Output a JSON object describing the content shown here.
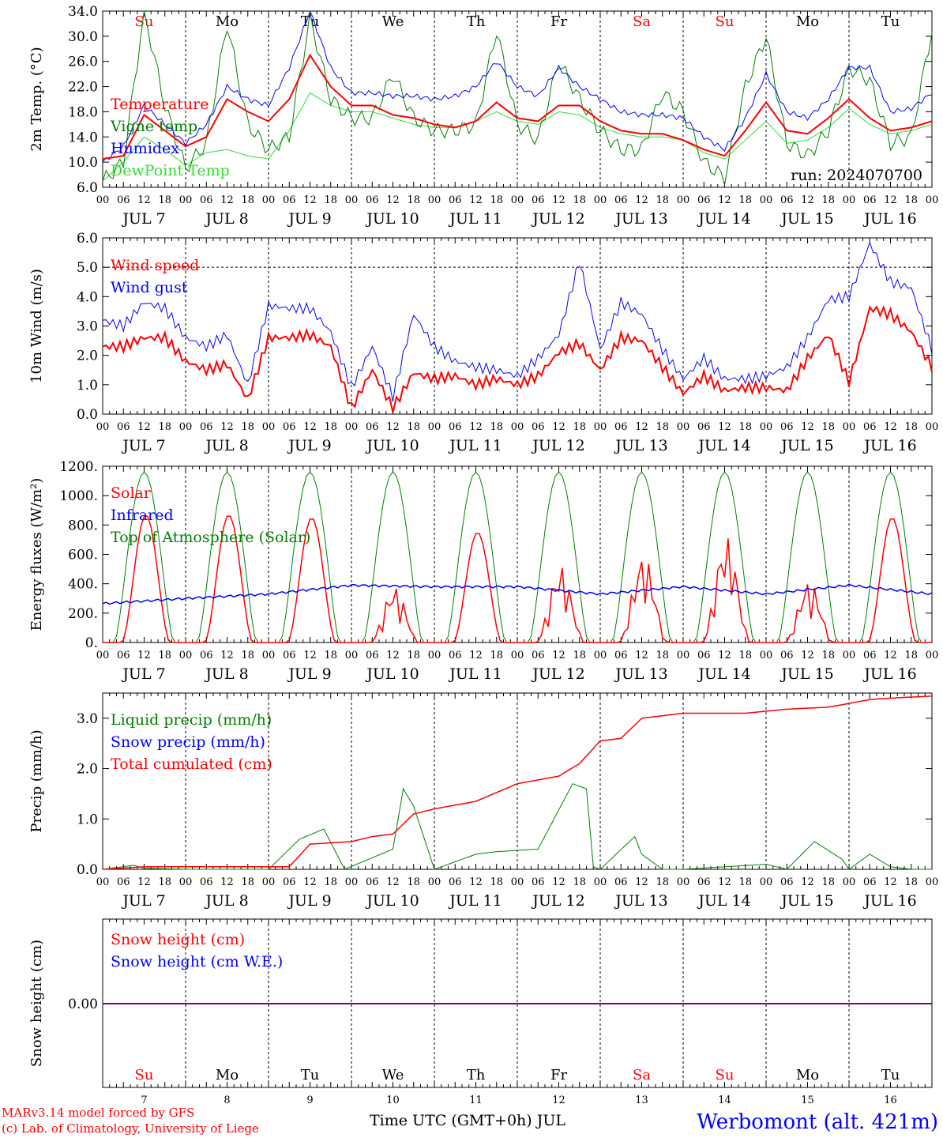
{
  "colors": {
    "red": "#ff0000",
    "green": "#008000",
    "blue": "#0000ff",
    "lightgreen": "#33dd33",
    "purple": "#800080",
    "black": "#000000"
  },
  "hour_ticks": [
    "00",
    "06",
    "12",
    "18"
  ],
  "last_hour_tick": "00",
  "days": [
    {
      "label": "JUL  7",
      "num": "7",
      "dow": "Su",
      "weekend": true
    },
    {
      "label": "JUL  8",
      "num": "8",
      "dow": "Mo",
      "weekend": false
    },
    {
      "label": "JUL  9",
      "num": "9",
      "dow": "Tu",
      "weekend": false
    },
    {
      "label": "JUL 10",
      "num": "10",
      "dow": "We",
      "weekend": false
    },
    {
      "label": "JUL 11",
      "num": "11",
      "dow": "Th",
      "weekend": false
    },
    {
      "label": "JUL 12",
      "num": "12",
      "dow": "Fr",
      "weekend": false
    },
    {
      "label": "JUL 13",
      "num": "13",
      "dow": "Sa",
      "weekend": true
    },
    {
      "label": "JUL 14",
      "num": "14",
      "dow": "Su",
      "weekend": true
    },
    {
      "label": "JUL 15",
      "num": "15",
      "dow": "Mo",
      "weekend": false
    },
    {
      "label": "JUL 16",
      "num": "16",
      "dow": "Tu",
      "weekend": false
    }
  ],
  "footer": {
    "model_line1": "MARv3.14 model forced by GFS",
    "model_line2": "(c) Lab. of Climatology, University of Liege",
    "time_axis": "Time UTC (GMT+0h) JUL",
    "station": "Werbomont (alt. 421m)"
  },
  "chart_data": [
    {
      "type": "line",
      "ylabel": "2m Temp. (°C)",
      "ylim": [
        6,
        34
      ],
      "yticks": [
        "6.0",
        "10.0",
        "14.0",
        "18.0",
        "22.0",
        "26.0",
        "30.0",
        "34.0"
      ],
      "ytick_values": [
        6,
        10,
        14,
        18,
        22,
        26,
        30,
        34
      ],
      "annotation": "run: 2024070700",
      "x_hours": [
        0,
        6,
        12,
        18,
        24,
        30,
        36,
        42,
        48,
        54,
        60,
        66,
        72,
        78,
        84,
        90,
        96,
        102,
        108,
        114,
        120,
        126,
        132,
        138,
        144,
        150,
        156,
        162,
        168,
        174,
        180,
        186,
        192,
        198,
        204,
        210,
        216,
        222,
        228,
        234,
        240
      ],
      "series": [
        {
          "name": "Temperature",
          "color": "red",
          "values": [
            10.5,
            11,
            17.5,
            15,
            12.5,
            14,
            20,
            18,
            16.5,
            20,
            27,
            22,
            19,
            19,
            17.5,
            17,
            16,
            15.5,
            16.5,
            19.5,
            17,
            16.5,
            19,
            19,
            16.5,
            15,
            14.5,
            14.5,
            13.5,
            12,
            11,
            15,
            19.5,
            15,
            14.5,
            17,
            20,
            17,
            15,
            15.5,
            16.5
          ]
        },
        {
          "name": "Vigne temp",
          "color": "green",
          "values": [
            7,
            10,
            34,
            19,
            9,
            13,
            32,
            16,
            12,
            14,
            33,
            20,
            17,
            17,
            24,
            17,
            15,
            15,
            16,
            31,
            16,
            13.5,
            26,
            20,
            15,
            12,
            12,
            21,
            18,
            10,
            7.5,
            22,
            30,
            13,
            11,
            15,
            25,
            23,
            13,
            14,
            31
          ]
        },
        {
          "name": "Humidex",
          "color": "blue",
          "values": [
            10,
            12.5,
            19,
            16,
            13,
            16,
            22,
            20,
            19,
            25,
            34,
            25,
            21,
            21,
            20.5,
            20.5,
            20,
            20.5,
            22,
            26,
            22,
            20.5,
            25,
            22,
            20,
            18,
            17.5,
            17.5,
            17,
            14,
            12,
            17,
            24,
            18,
            17,
            20,
            25,
            25,
            18,
            18.5,
            21
          ]
        },
        {
          "name": "DewPoint Temp",
          "color": "lightgreen",
          "values": [
            7,
            10,
            14,
            12,
            9.5,
            11.5,
            12,
            11,
            10.5,
            15,
            21,
            19,
            18,
            18,
            17,
            16,
            15.5,
            15.5,
            16.5,
            18,
            16.5,
            16,
            18,
            17.5,
            15.5,
            14.5,
            14,
            14,
            13.5,
            11.5,
            10.5,
            13.5,
            16.5,
            13,
            13.5,
            15.5,
            18.5,
            16,
            14.5,
            15,
            16
          ]
        }
      ]
    },
    {
      "type": "line",
      "ylabel": "10m Wind (m/s)",
      "ylim": [
        0,
        6
      ],
      "yticks": [
        "0.0",
        "1.0",
        "2.0",
        "3.0",
        "4.0",
        "5.0",
        "6.0"
      ],
      "ytick_values": [
        0,
        1,
        2,
        3,
        4,
        5,
        6
      ],
      "ref_line": 5,
      "x_hours": [
        0,
        6,
        12,
        18,
        24,
        30,
        36,
        42,
        48,
        54,
        60,
        66,
        72,
        78,
        84,
        90,
        96,
        102,
        108,
        114,
        120,
        126,
        132,
        138,
        144,
        150,
        156,
        162,
        168,
        174,
        180,
        186,
        192,
        198,
        204,
        210,
        216,
        222,
        228,
        234,
        240
      ],
      "series": [
        {
          "name": "Wind speed",
          "color": "red",
          "values": [
            2.3,
            2.3,
            2.6,
            2.6,
            1.8,
            1.5,
            1.7,
            0.5,
            2.6,
            2.6,
            2.7,
            2.3,
            0.2,
            1.5,
            0.2,
            1.4,
            1.2,
            1.3,
            1.0,
            1.2,
            1.0,
            1.3,
            2.1,
            2.4,
            1.5,
            2.6,
            2.5,
            1.6,
            0.7,
            1.3,
            0.8,
            0.9,
            0.9,
            0.8,
            1.9,
            2.7,
            1.1,
            3.6,
            3.4,
            2.8,
            1.6
          ]
        },
        {
          "name": "Wind gust",
          "color": "blue",
          "values": [
            3.2,
            3.0,
            3.8,
            3.6,
            2.6,
            2.3,
            2.7,
            1.0,
            3.7,
            3.6,
            3.6,
            2.8,
            0.9,
            2.3,
            0.6,
            3.4,
            2.3,
            1.8,
            1.6,
            1.5,
            1.3,
            1.9,
            2.7,
            5.2,
            2.2,
            3.8,
            3.4,
            2.2,
            1.2,
            1.9,
            1.2,
            1.2,
            1.3,
            1.6,
            2.6,
            3.9,
            4.0,
            5.8,
            4.5,
            4.3,
            2.2
          ]
        }
      ]
    },
    {
      "type": "line",
      "ylabel": "Energy fluxes (W/m²)",
      "ylim": [
        0,
        1200
      ],
      "yticks": [
        "0.",
        "200.",
        "400.",
        "600.",
        "800.",
        "1000.",
        "1200."
      ],
      "ytick_values": [
        0,
        200,
        400,
        600,
        800,
        1000,
        1200
      ],
      "solar_peaks": [
        870,
        870,
        850,
        380,
        750,
        520,
        600,
        720,
        420,
        850
      ],
      "toa_peak": 1160,
      "series": [
        {
          "name": "Solar",
          "color": "red",
          "daily_peak_values": [
            870,
            870,
            850,
            380,
            750,
            520,
            600,
            720,
            420,
            850
          ]
        },
        {
          "name": "Infrared",
          "color": "blue",
          "x_hours": [
            0,
            24,
            48,
            72,
            96,
            120,
            144,
            168,
            192,
            216,
            240
          ],
          "values": [
            265,
            300,
            330,
            390,
            380,
            380,
            330,
            380,
            330,
            390,
            330
          ]
        },
        {
          "name": "Top of Atmosphere (Solar)",
          "color": "green",
          "daily_peak_values": [
            1160,
            1160,
            1160,
            1160,
            1160,
            1160,
            1160,
            1160,
            1160,
            1160
          ]
        }
      ]
    },
    {
      "type": "line",
      "ylabel": "Precip (mm/h)",
      "ylim": [
        0,
        3.5
      ],
      "yticks": [
        "0.0",
        "1.0",
        "2.0",
        "3.0"
      ],
      "ytick_values": [
        0,
        1,
        2,
        3
      ],
      "series": [
        {
          "name": "Liquid precip (mm/h)",
          "color": "green",
          "x_hours": [
            0,
            9,
            12,
            24,
            48,
            57,
            64,
            70,
            84,
            87,
            90,
            96,
            108,
            114,
            126,
            136,
            140,
            142,
            144,
            154,
            156,
            162,
            168,
            192,
            198,
            206,
            214,
            216,
            222,
            228,
            234,
            240
          ],
          "values": [
            0,
            0.08,
            0.02,
            0,
            0,
            0.6,
            0.8,
            0,
            0.4,
            1.6,
            1.25,
            0,
            0.3,
            0.35,
            0.4,
            1.7,
            1.6,
            0.05,
            0,
            0.65,
            0.3,
            0,
            0,
            0.1,
            0,
            0.55,
            0.2,
            0,
            0.3,
            0.05,
            0,
            0
          ]
        },
        {
          "name": "Snow precip (mm/h)",
          "color": "blue",
          "x_hours": [
            0,
            240
          ],
          "values": [
            0,
            0
          ]
        },
        {
          "name": "Total cumulated (cm)",
          "color": "red",
          "x_hours": [
            0,
            12,
            48,
            54,
            60,
            72,
            78,
            84,
            90,
            96,
            108,
            120,
            132,
            138,
            144,
            150,
            156,
            168,
            186,
            198,
            210,
            222,
            228,
            240
          ],
          "values": [
            0,
            0.05,
            0.05,
            0.05,
            0.5,
            0.55,
            0.65,
            0.7,
            1.1,
            1.2,
            1.35,
            1.7,
            1.85,
            2.1,
            2.55,
            2.6,
            3.0,
            3.1,
            3.1,
            3.18,
            3.22,
            3.37,
            3.4,
            3.44
          ]
        }
      ]
    },
    {
      "type": "line",
      "ylabel": "Snow height (cm)",
      "yticks": [
        "0.00"
      ],
      "ytick_values": [
        0
      ],
      "series": [
        {
          "name": "Snow height (cm)",
          "color": "red",
          "value": 0
        },
        {
          "name": "Snow height (cm W.E.)",
          "color": "blue",
          "value": 0
        }
      ]
    }
  ]
}
